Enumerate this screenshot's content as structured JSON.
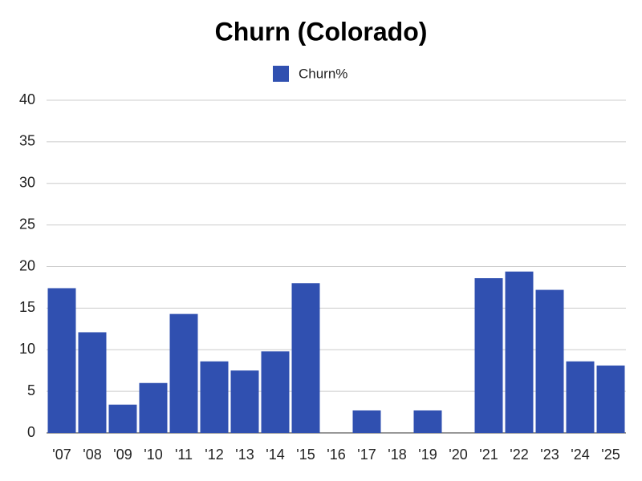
{
  "chart_data": {
    "type": "bar",
    "title": "Churn (Colorado)",
    "categories": [
      "'07",
      "'08",
      "'09",
      "'10",
      "'11",
      "'12",
      "'13",
      "'14",
      "'15",
      "'16",
      "'17",
      "'18",
      "'19",
      "'20",
      "'21",
      "'22",
      "'23",
      "'24",
      "'25"
    ],
    "series": [
      {
        "name": "Churn%",
        "color": "#3050b0",
        "values": [
          17.4,
          12.1,
          3.4,
          6.0,
          14.3,
          8.6,
          7.5,
          9.8,
          18.0,
          0,
          2.7,
          0,
          2.7,
          0,
          18.6,
          19.4,
          17.2,
          8.6,
          8.1
        ]
      }
    ],
    "ylim": [
      0,
      40
    ],
    "yticks": [
      0,
      5,
      10,
      15,
      20,
      25,
      30,
      35,
      40
    ],
    "grid": true,
    "legend": "top"
  }
}
